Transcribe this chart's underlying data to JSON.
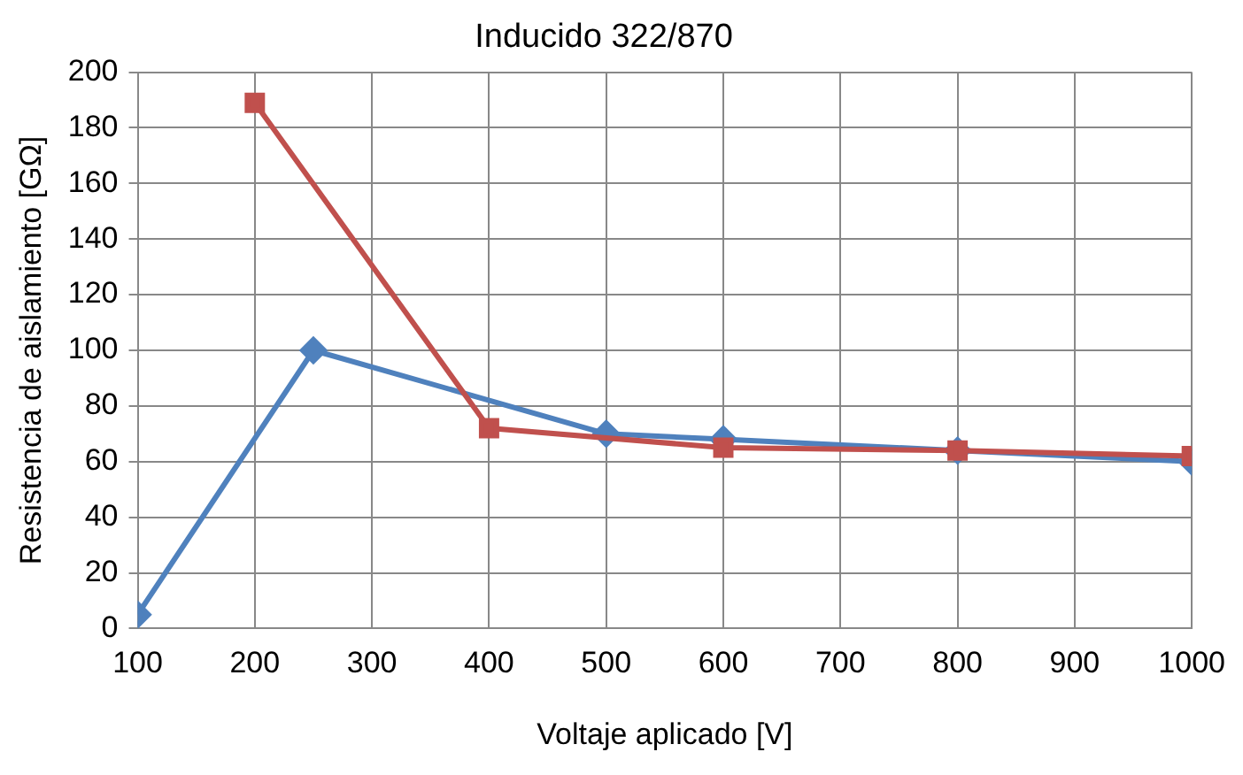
{
  "chart_data": {
    "type": "line",
    "title": "Inducido 322/870",
    "xlabel": "Voltaje aplicado [V]",
    "ylabel": "Resistencia de aislamiento [GΩ]",
    "xlim": [
      100,
      1000
    ],
    "xticks": [
      100,
      200,
      300,
      400,
      500,
      600,
      700,
      800,
      900,
      1000
    ],
    "ylim": [
      0,
      200
    ],
    "yticks": [
      0,
      20,
      40,
      60,
      80,
      100,
      120,
      140,
      160,
      180,
      200
    ],
    "grid": true,
    "legend": false,
    "line_style": "solid",
    "series": [
      {
        "color": "#4f81bd",
        "marker": "diamond",
        "x": [
          100,
          250,
          500,
          600,
          800,
          1000
        ],
        "values": [
          5,
          100,
          70,
          68,
          64,
          60
        ]
      },
      {
        "color": "#c0504d",
        "marker": "square",
        "x": [
          200,
          400,
          600,
          800,
          1000
        ],
        "values": [
          189,
          72,
          65,
          64,
          62
        ]
      }
    ]
  }
}
